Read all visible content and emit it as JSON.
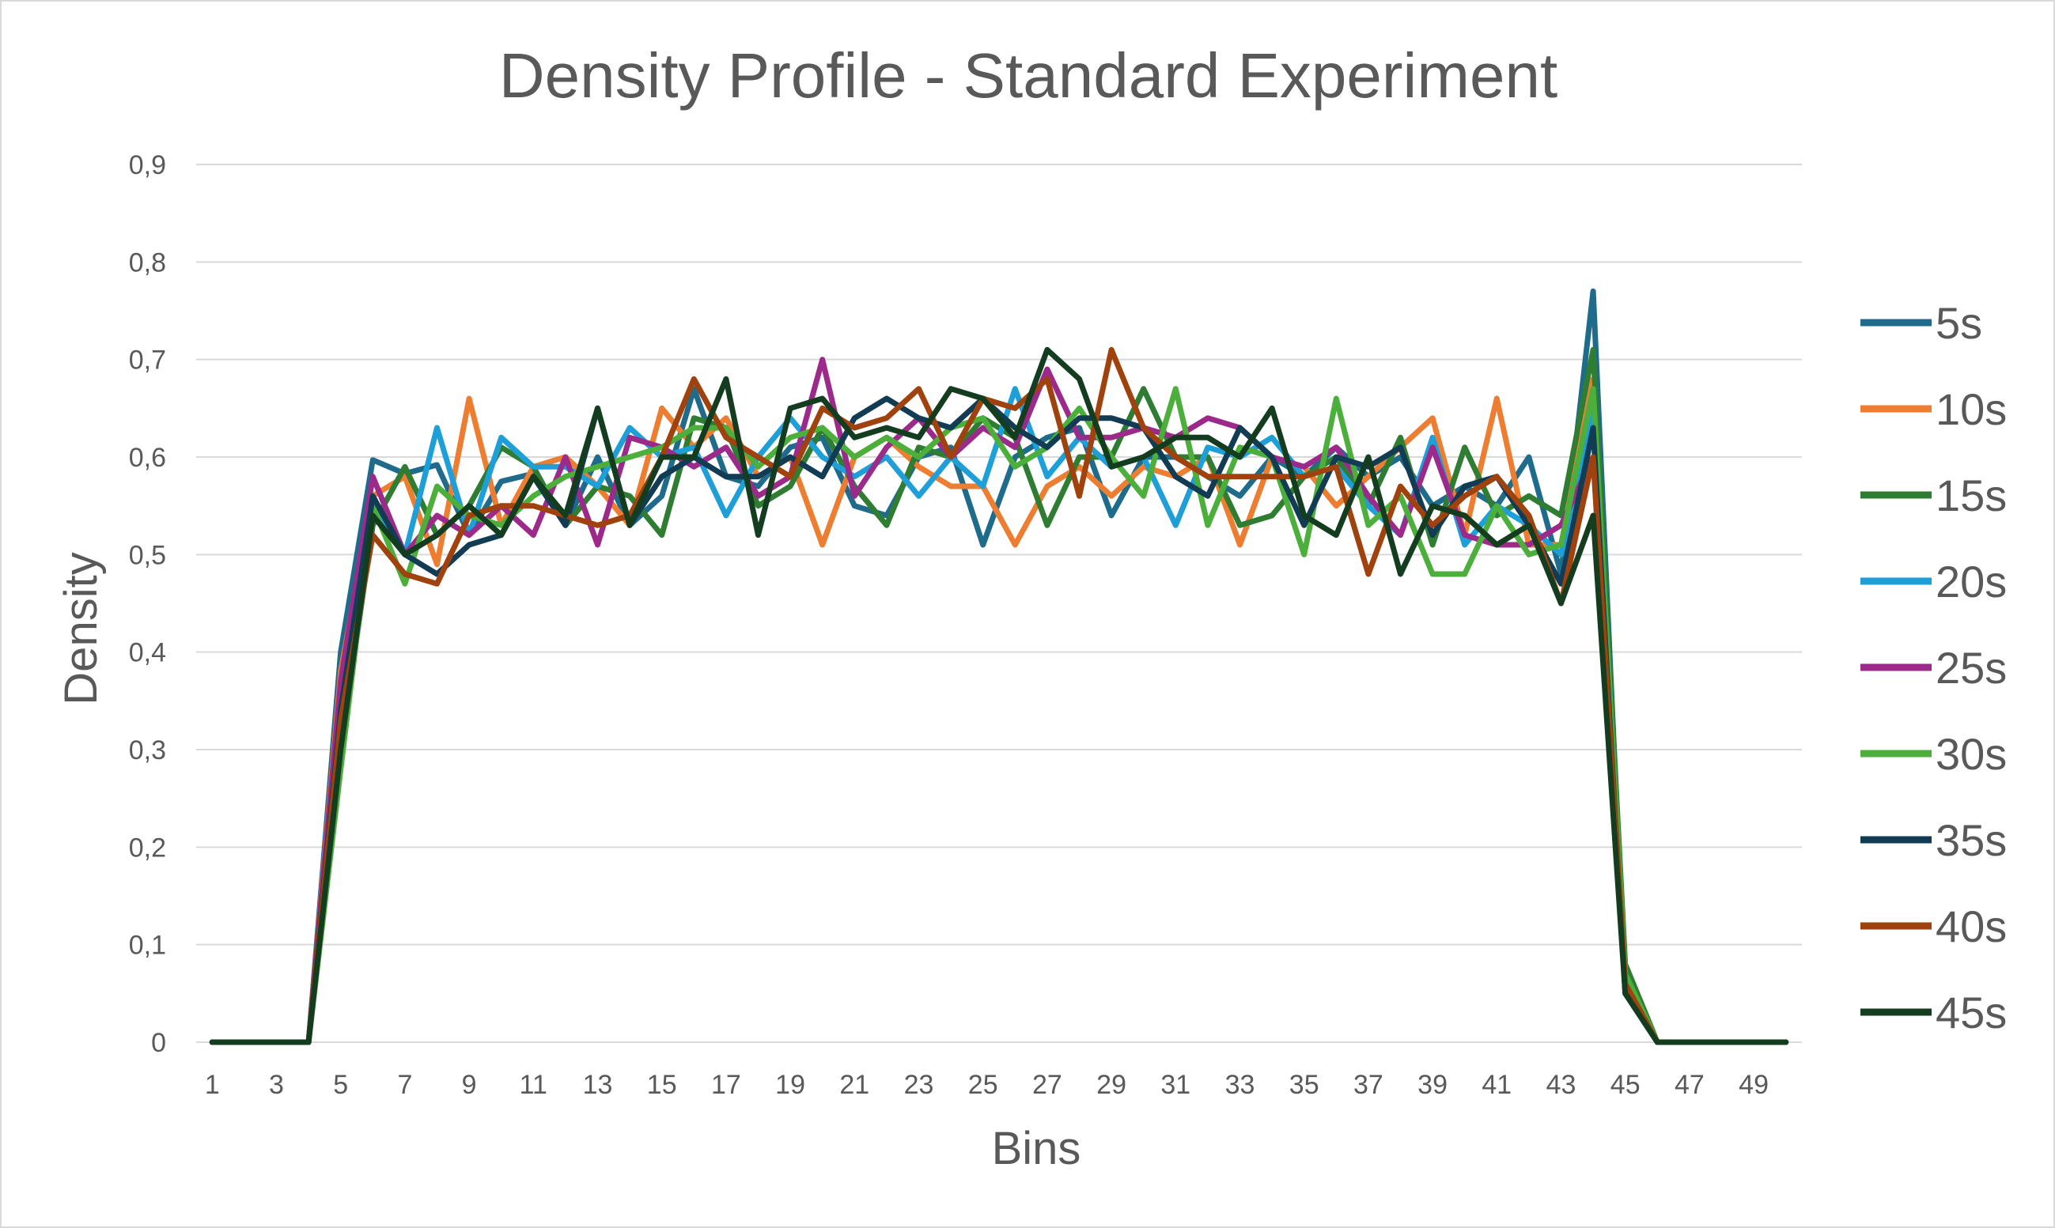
{
  "chart_data": {
    "type": "line",
    "title": "Density Profile - Standard Experiment",
    "xlabel": "Bins",
    "ylabel": "Density",
    "ylim": [
      0,
      0.9
    ],
    "yticks": [
      "0",
      "0,1",
      "0,2",
      "0,3",
      "0,4",
      "0,5",
      "0,6",
      "0,7",
      "0,8",
      "0,9"
    ],
    "xtick_labels": [
      "1",
      "3",
      "5",
      "7",
      "9",
      "11",
      "13",
      "15",
      "17",
      "19",
      "21",
      "23",
      "25",
      "27",
      "29",
      "31",
      "33",
      "35",
      "37",
      "39",
      "41",
      "43",
      "45",
      "47",
      "49"
    ],
    "grid": true,
    "legend_position": "right",
    "x": [
      1,
      2,
      3,
      4,
      5,
      6,
      7,
      8,
      9,
      10,
      11,
      12,
      13,
      14,
      15,
      16,
      17,
      18,
      19,
      20,
      21,
      22,
      23,
      24,
      25,
      26,
      27,
      28,
      29,
      30,
      31,
      32,
      33,
      34,
      35,
      36,
      37,
      38,
      39,
      40,
      41,
      42,
      43,
      44,
      45,
      46,
      47,
      48,
      49,
      50
    ],
    "series": [
      {
        "name": "5s",
        "color": "#1f6b8c",
        "values": [
          0,
          0,
          0,
          0,
          0.4,
          0.597,
          0.583,
          0.592,
          0.52,
          0.575,
          0.583,
          0.53,
          0.6,
          0.53,
          0.56,
          0.67,
          0.58,
          0.57,
          0.61,
          0.62,
          0.55,
          0.54,
          0.6,
          0.61,
          0.51,
          0.6,
          0.62,
          0.63,
          0.54,
          0.6,
          0.6,
          0.58,
          0.56,
          0.6,
          0.58,
          0.61,
          0.58,
          0.6,
          0.55,
          0.57,
          0.55,
          0.6,
          0.48,
          0.77,
          0.05,
          0,
          0,
          0,
          0,
          0
        ]
      },
      {
        "name": "10s",
        "color": "#ed7d31",
        "values": [
          0,
          0,
          0,
          0,
          0.38,
          0.56,
          0.58,
          0.49,
          0.66,
          0.53,
          0.59,
          0.6,
          0.57,
          0.53,
          0.65,
          0.61,
          0.64,
          0.58,
          0.6,
          0.51,
          0.6,
          0.62,
          0.59,
          0.57,
          0.57,
          0.51,
          0.57,
          0.59,
          0.56,
          0.59,
          0.58,
          0.6,
          0.51,
          0.6,
          0.59,
          0.55,
          0.58,
          0.61,
          0.64,
          0.52,
          0.66,
          0.51,
          0.51,
          0.68,
          0.06,
          0,
          0,
          0,
          0,
          0
        ]
      },
      {
        "name": "15s",
        "color": "#2e7d32",
        "values": [
          0,
          0,
          0,
          0,
          0.3,
          0.53,
          0.59,
          0.52,
          0.55,
          0.61,
          0.59,
          0.53,
          0.57,
          0.56,
          0.52,
          0.64,
          0.63,
          0.55,
          0.57,
          0.63,
          0.57,
          0.53,
          0.61,
          0.6,
          0.64,
          0.62,
          0.53,
          0.6,
          0.6,
          0.67,
          0.6,
          0.6,
          0.53,
          0.54,
          0.58,
          0.6,
          0.55,
          0.62,
          0.51,
          0.61,
          0.54,
          0.56,
          0.54,
          0.71,
          0.08,
          0,
          0,
          0,
          0,
          0
        ]
      },
      {
        "name": "20s",
        "color": "#1f9fd8",
        "values": [
          0,
          0,
          0,
          0,
          0.35,
          0.55,
          0.5,
          0.63,
          0.52,
          0.62,
          0.59,
          0.59,
          0.57,
          0.63,
          0.6,
          0.61,
          0.54,
          0.6,
          0.64,
          0.6,
          0.58,
          0.6,
          0.56,
          0.6,
          0.57,
          0.67,
          0.58,
          0.62,
          0.59,
          0.6,
          0.53,
          0.61,
          0.6,
          0.62,
          0.58,
          0.59,
          0.55,
          0.52,
          0.62,
          0.51,
          0.55,
          0.53,
          0.5,
          0.65,
          0.06,
          0,
          0,
          0,
          0,
          0
        ]
      },
      {
        "name": "25s",
        "color": "#9c2a8a",
        "values": [
          0,
          0,
          0,
          0,
          0.37,
          0.58,
          0.5,
          0.54,
          0.52,
          0.55,
          0.52,
          0.6,
          0.51,
          0.62,
          0.61,
          0.59,
          0.61,
          0.56,
          0.58,
          0.7,
          0.56,
          0.61,
          0.64,
          0.6,
          0.63,
          0.61,
          0.69,
          0.62,
          0.62,
          0.63,
          0.62,
          0.64,
          0.63,
          0.6,
          0.59,
          0.61,
          0.56,
          0.52,
          0.61,
          0.52,
          0.51,
          0.51,
          0.53,
          0.6,
          0.06,
          0,
          0,
          0,
          0,
          0
        ]
      },
      {
        "name": "30s",
        "color": "#4caf3b",
        "values": [
          0,
          0,
          0,
          0,
          0.28,
          0.55,
          0.47,
          0.57,
          0.54,
          0.53,
          0.56,
          0.58,
          0.59,
          0.6,
          0.61,
          0.63,
          0.63,
          0.59,
          0.62,
          0.63,
          0.6,
          0.62,
          0.6,
          0.63,
          0.64,
          0.59,
          0.61,
          0.65,
          0.6,
          0.56,
          0.67,
          0.53,
          0.61,
          0.6,
          0.5,
          0.66,
          0.53,
          0.56,
          0.48,
          0.48,
          0.55,
          0.5,
          0.51,
          0.67,
          0.07,
          0,
          0,
          0,
          0,
          0
        ]
      },
      {
        "name": "35s",
        "color": "#123b54",
        "values": [
          0,
          0,
          0,
          0,
          0.34,
          0.56,
          0.5,
          0.48,
          0.51,
          0.52,
          0.58,
          0.53,
          0.65,
          0.53,
          0.58,
          0.6,
          0.58,
          0.58,
          0.6,
          0.58,
          0.64,
          0.66,
          0.64,
          0.63,
          0.66,
          0.63,
          0.61,
          0.64,
          0.64,
          0.63,
          0.58,
          0.56,
          0.63,
          0.6,
          0.53,
          0.6,
          0.59,
          0.61,
          0.52,
          0.57,
          0.58,
          0.53,
          0.47,
          0.63,
          0.05,
          0,
          0,
          0,
          0,
          0
        ]
      },
      {
        "name": "40s",
        "color": "#a0420d",
        "values": [
          0,
          0,
          0,
          0,
          0.33,
          0.52,
          0.48,
          0.47,
          0.54,
          0.55,
          0.55,
          0.54,
          0.53,
          0.54,
          0.6,
          0.68,
          0.62,
          0.6,
          0.58,
          0.65,
          0.63,
          0.64,
          0.67,
          0.6,
          0.66,
          0.65,
          0.68,
          0.56,
          0.71,
          0.63,
          0.6,
          0.58,
          0.58,
          0.58,
          0.58,
          0.59,
          0.48,
          0.57,
          0.53,
          0.56,
          0.58,
          0.54,
          0.45,
          0.6,
          0.06,
          0,
          0,
          0,
          0,
          0
        ]
      },
      {
        "name": "45s",
        "color": "#143d20",
        "values": [
          0,
          0,
          0,
          0,
          0.3,
          0.54,
          0.5,
          0.52,
          0.55,
          0.52,
          0.58,
          0.54,
          0.65,
          0.53,
          0.6,
          0.6,
          0.68,
          0.52,
          0.65,
          0.66,
          0.62,
          0.63,
          0.62,
          0.67,
          0.66,
          0.62,
          0.71,
          0.68,
          0.59,
          0.6,
          0.62,
          0.62,
          0.6,
          0.65,
          0.54,
          0.52,
          0.6,
          0.48,
          0.55,
          0.54,
          0.51,
          0.53,
          0.45,
          0.54,
          0.05,
          0,
          0,
          0,
          0,
          0
        ]
      }
    ]
  }
}
